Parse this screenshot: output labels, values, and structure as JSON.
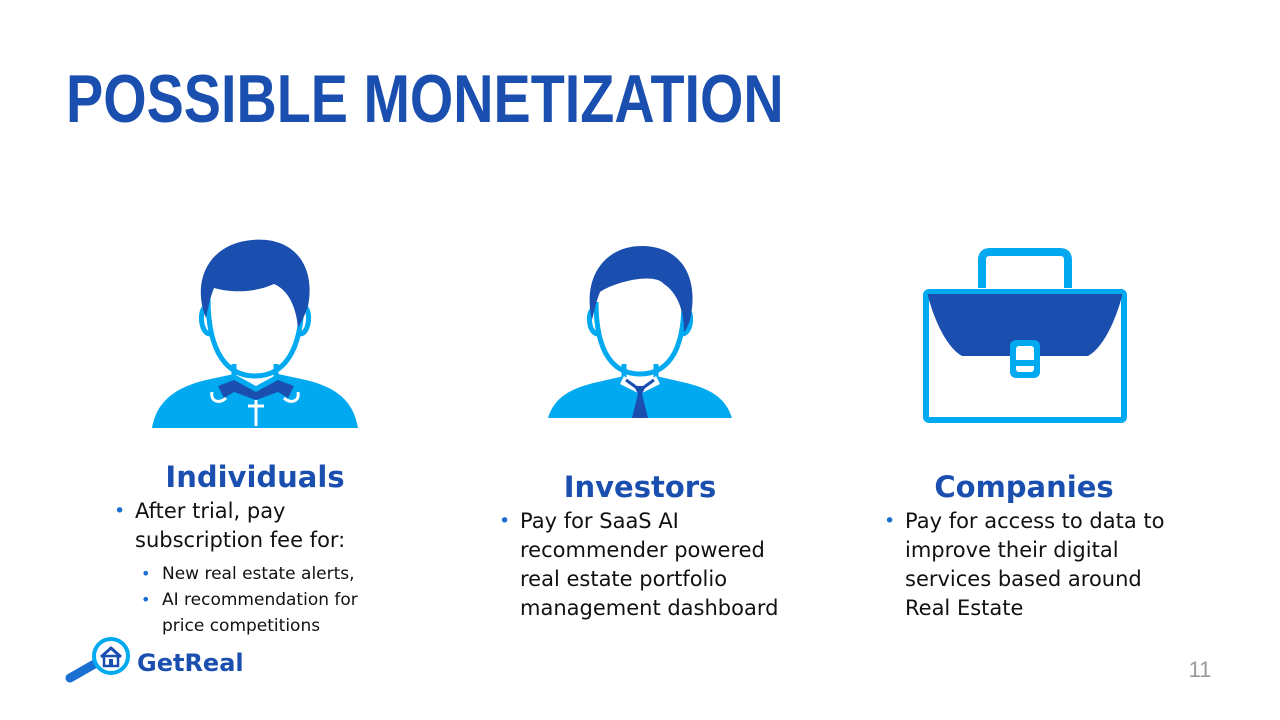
{
  "slide": {
    "title": "POSSIBLE MONETIZATION",
    "page_number": "11"
  },
  "colors": {
    "dark_blue": "#1a4fb0",
    "light_blue": "#00a9f0",
    "bullet_blue": "#1a6fd1",
    "text": "#111111",
    "page_number": "#9a9a9a"
  },
  "columns": [
    {
      "heading": "Individuals",
      "icon": "person-casual-icon",
      "bullets": [
        {
          "text_lines": [
            "After trial, pay",
            "subscription fee for:"
          ],
          "sub_bullets": [
            {
              "text_lines": [
                "New real estate alerts,"
              ]
            },
            {
              "text_lines": [
                "AI recommendation  for",
                "price competitions"
              ]
            }
          ]
        }
      ]
    },
    {
      "heading": "Investors",
      "icon": "businessman-icon",
      "bullets": [
        {
          "text_lines": [
            "Pay for SaaS AI",
            "recommender powered",
            "real estate portfolio",
            "management dashboard"
          ]
        }
      ]
    },
    {
      "heading": "Companies",
      "icon": "briefcase-icon",
      "bullets": [
        {
          "text_lines": [
            "Pay for access to data to",
            "improve their digital",
            "services based around",
            "Real Estate"
          ]
        }
      ]
    }
  ],
  "logo": {
    "text": "GetReal",
    "icon": "magnifier-house-icon"
  }
}
